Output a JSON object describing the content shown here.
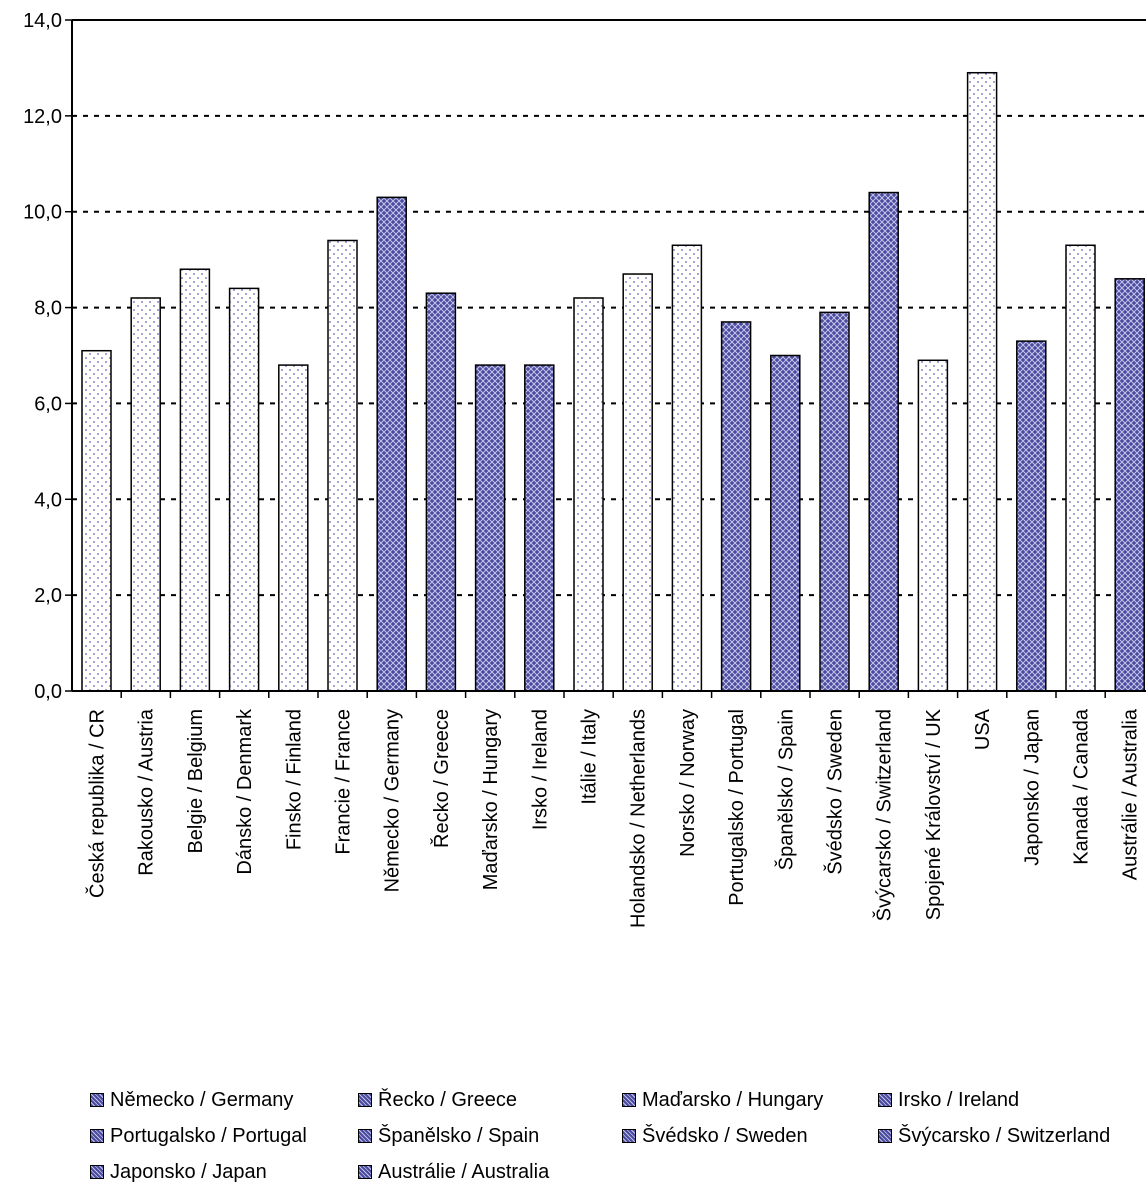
{
  "chart_data": {
    "type": "bar",
    "ylim": [
      0,
      14
    ],
    "yticks": [
      "0,0",
      "2,0",
      "4,0",
      "6,0",
      "8,0",
      "10,0",
      "12,0",
      "14,0"
    ],
    "grid": "horizontal dashed",
    "categories": [
      "Česká republika / CR",
      "Rakousko / Austria",
      "Belgie / Belgium",
      "Dánsko / Denmark",
      "Finsko / Finland",
      "Francie / France",
      "Německo / Germany",
      "Řecko / Greece",
      "Maďarsko / Hungary",
      "Irsko / Ireland",
      "Itálie / Italy",
      "Holandsko / Netherlands",
      "Norsko / Norway",
      "Portugalsko / Portugal",
      "Španělsko / Spain",
      "Švédsko / Sweden",
      "Švýcarsko / Switzerland",
      "Spojené Království / UK",
      "USA",
      "Japonsko / Japan",
      "Kanada / Canada",
      "Austrálie / Australia"
    ],
    "values": [
      7.1,
      8.2,
      8.8,
      8.4,
      6.8,
      9.4,
      10.3,
      8.3,
      6.8,
      6.8,
      8.2,
      8.7,
      9.3,
      7.7,
      7.0,
      7.9,
      10.4,
      6.9,
      12.9,
      7.3,
      9.3,
      8.6
    ],
    "styles": [
      "light",
      "light",
      "light",
      "light",
      "light",
      "light",
      "dark",
      "dark",
      "dark",
      "dark",
      "light",
      "light",
      "light",
      "dark",
      "dark",
      "dark",
      "dark",
      "light",
      "light",
      "dark",
      "light",
      "dark"
    ],
    "legend_position": "bottom",
    "legend": [
      "Německo / Germany",
      "Řecko / Greece",
      "Maďarsko / Hungary",
      "Irsko / Ireland",
      "Portugalsko / Portugal",
      "Španělsko / Spain",
      "Švédsko / Sweden",
      "Švýcarsko / Switzerland",
      "Japonsko / Japan",
      "Austrálie / Australia"
    ]
  },
  "colors": {
    "light_fill": "#ffffff",
    "light_dot": "#8a86cc",
    "dark_fill": "#4a4a9e",
    "dark_hatch": "#c4c4ea",
    "axis": "#000000"
  }
}
